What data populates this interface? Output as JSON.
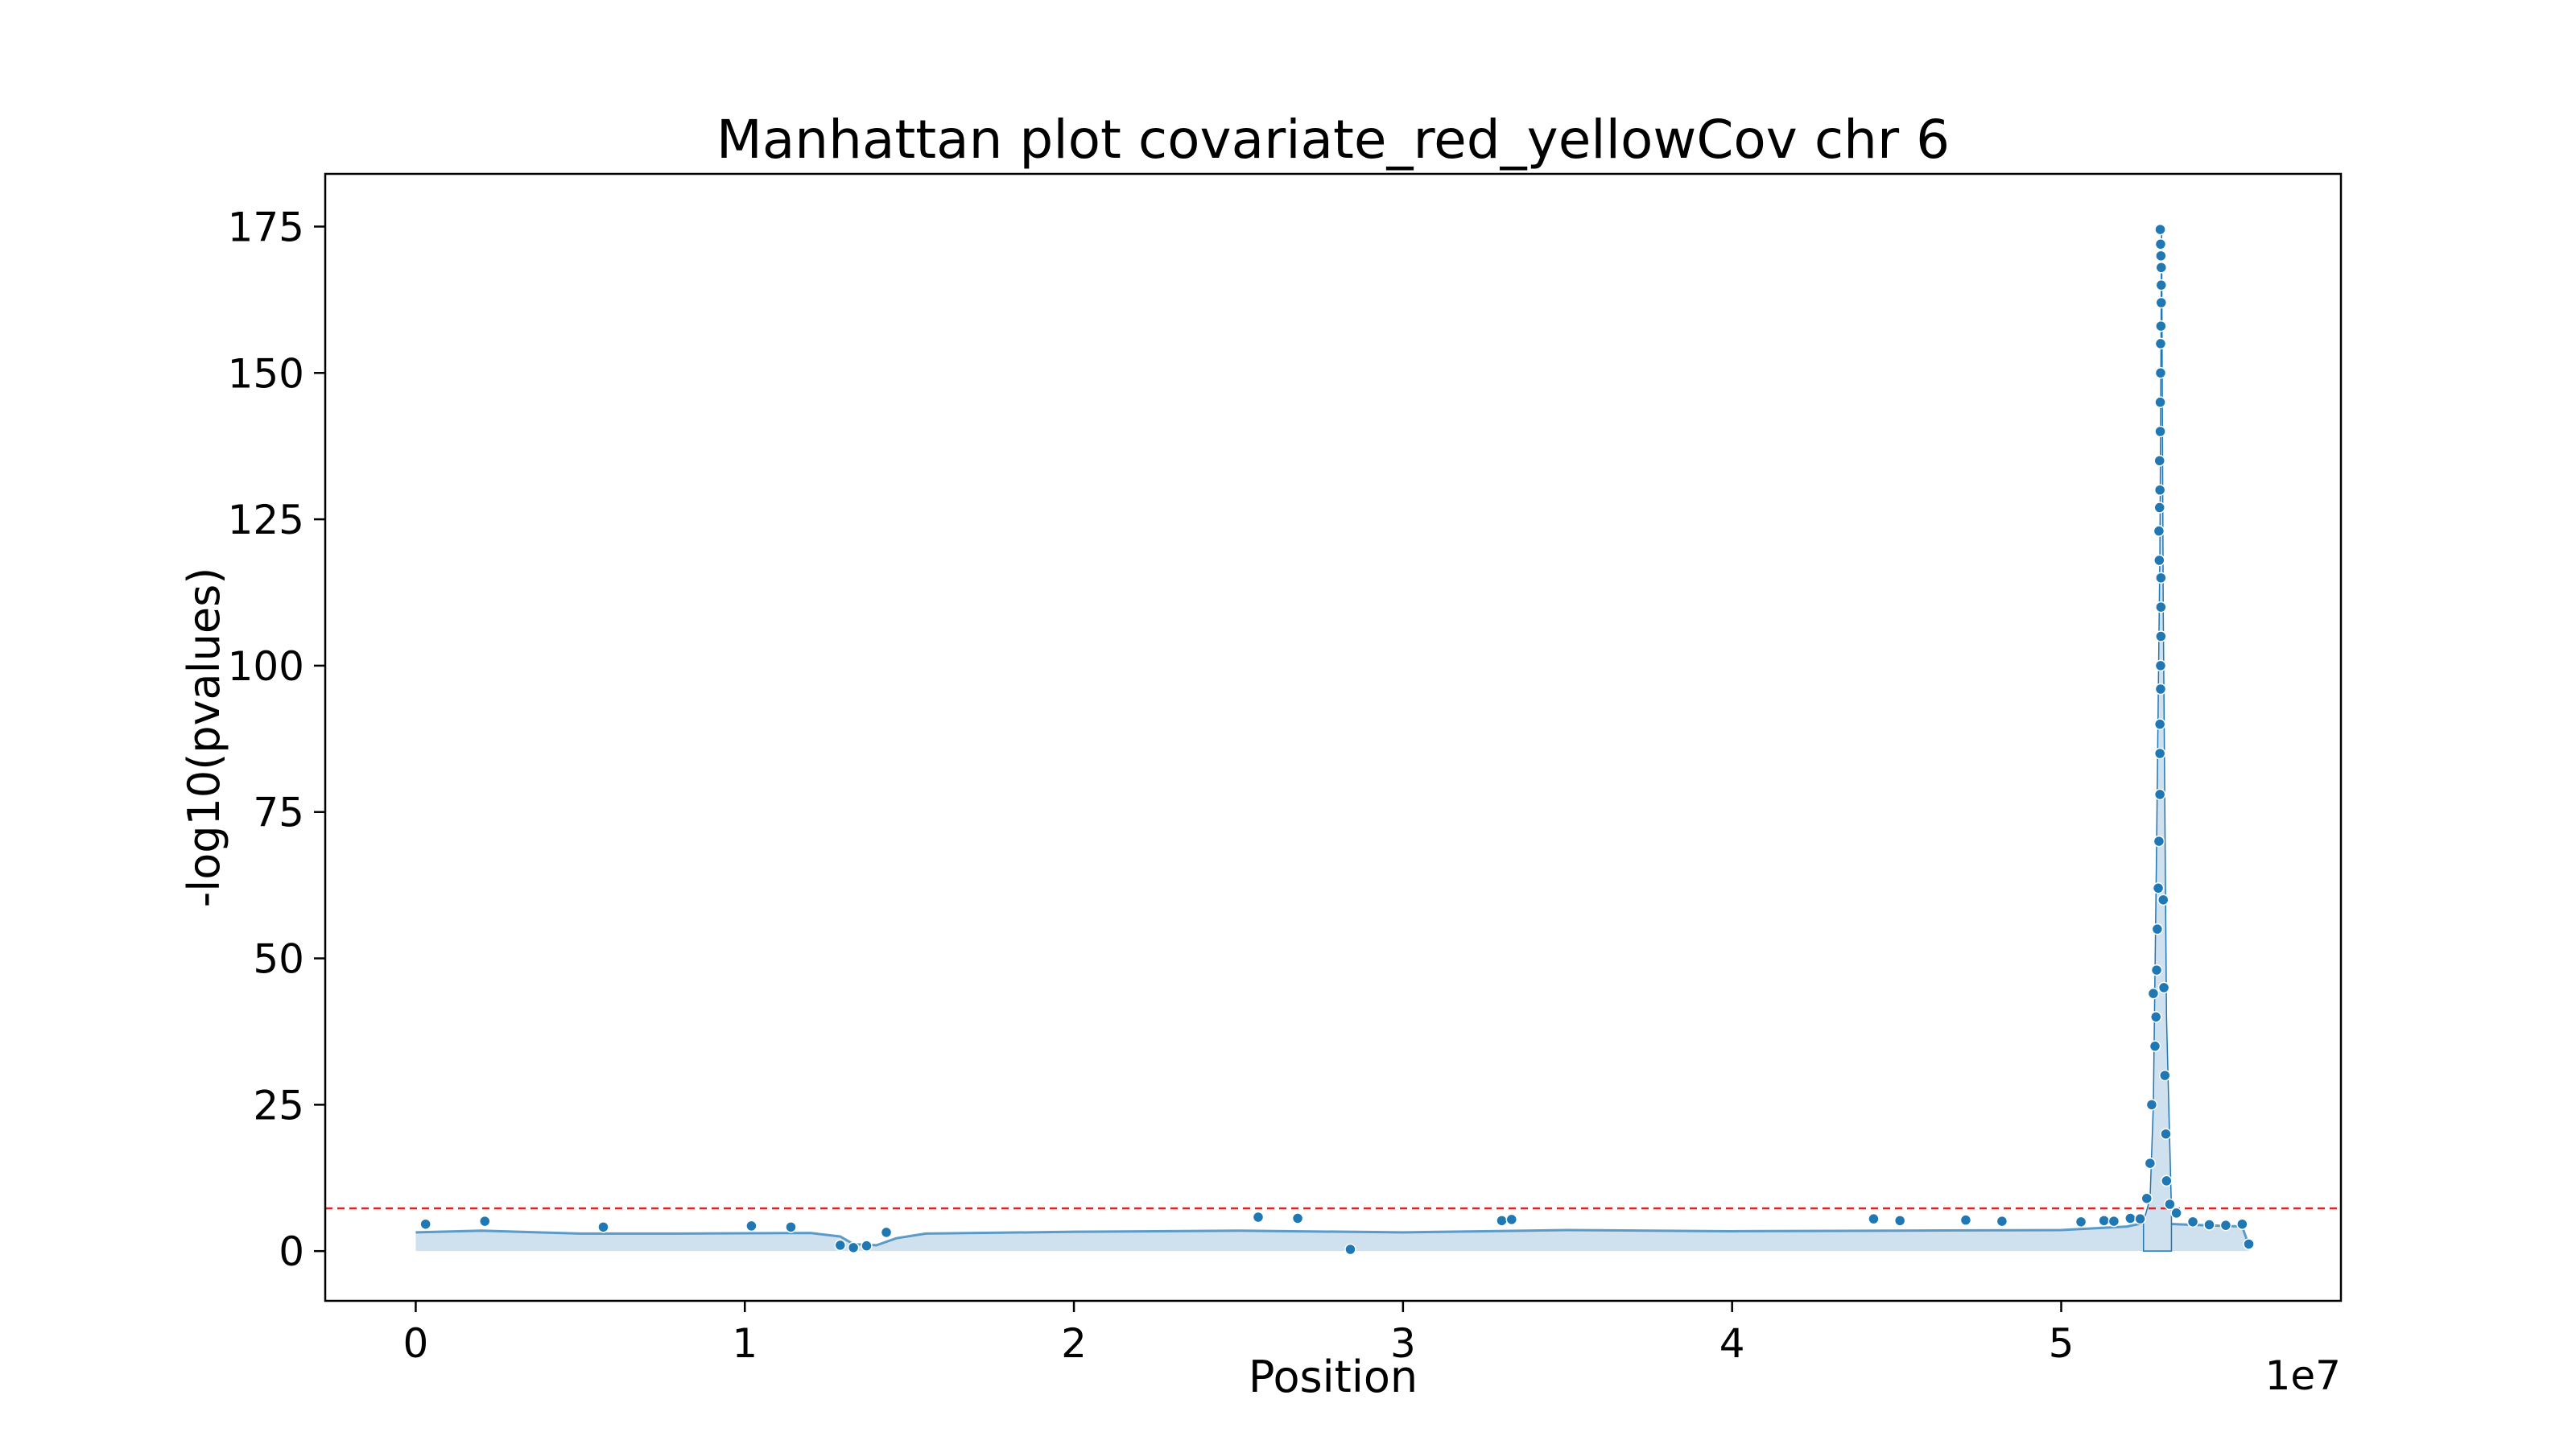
{
  "chart_data": {
    "type": "scatter",
    "title": "Manhattan plot covariate_red_yellowCov chr 6",
    "xlabel": "Position",
    "ylabel": "-log10(pvalues)",
    "x_offset_label": "1e7",
    "x_tick_labels": [
      "0",
      "1",
      "2",
      "3",
      "4",
      "5"
    ],
    "x_ticks": [
      0,
      10000000,
      20000000,
      30000000,
      40000000,
      50000000
    ],
    "y_tick_labels": [
      "0",
      "25",
      "50",
      "75",
      "100",
      "125",
      "150",
      "175"
    ],
    "y_ticks": [
      0,
      25,
      50,
      75,
      100,
      125,
      150,
      175
    ],
    "xlim": [
      -2750000,
      58500000
    ],
    "ylim": [
      -8.5,
      184
    ],
    "grid": false,
    "colors": {
      "points": "#1f77b4",
      "point_edge": "#ffffff",
      "fill": "#cfe0ef",
      "threshold": "#d62728"
    },
    "threshold": {
      "value": 7.3,
      "style": "dashed"
    },
    "background_trend": {
      "x": [
        0,
        2000000,
        5000000,
        8000000,
        12000000,
        12900000,
        13300000,
        14000000,
        14600000,
        15500000,
        20000000,
        25000000,
        30000000,
        35000000,
        40000000,
        45000000,
        50000000,
        52000000,
        52500000,
        54000000,
        55500000,
        55700000
      ],
      "y": [
        3.2,
        3.5,
        3.0,
        3.0,
        3.1,
        2.5,
        1.2,
        1.0,
        2.2,
        3.0,
        3.3,
        3.5,
        3.2,
        3.6,
        3.4,
        3.5,
        3.6,
        4.2,
        4.8,
        4.5,
        4.2,
        1.0
      ]
    },
    "peak": {
      "x": [
        52500000,
        52700000,
        52800000,
        52900000,
        53000000,
        53050000,
        53100000,
        53200000,
        53350000
      ],
      "y": [
        5,
        9,
        25,
        70,
        120,
        175,
        110,
        40,
        7
      ]
    },
    "series": [
      {
        "values": [
          [
            300000,
            4.6
          ],
          [
            2100000,
            5.1
          ],
          [
            5700000,
            4.1
          ],
          [
            10200000,
            4.3
          ],
          [
            11400000,
            4.1
          ],
          [
            12900000,
            1.0
          ],
          [
            13300000,
            0.6
          ],
          [
            13700000,
            0.9
          ],
          [
            14300000,
            3.2
          ],
          [
            25600000,
            5.8
          ],
          [
            26800000,
            5.6
          ],
          [
            28400000,
            0.3
          ],
          [
            33000000,
            5.2
          ],
          [
            33300000,
            5.4
          ],
          [
            44300000,
            5.5
          ],
          [
            45100000,
            5.2
          ],
          [
            47100000,
            5.3
          ],
          [
            48200000,
            5.1
          ],
          [
            50600000,
            5.0
          ],
          [
            51300000,
            5.2
          ],
          [
            51600000,
            5.1
          ],
          [
            52100000,
            5.6
          ],
          [
            52400000,
            5.5
          ],
          [
            52600000,
            9.0
          ],
          [
            52700000,
            15.0
          ],
          [
            52750000,
            25.0
          ],
          [
            52800000,
            44.0
          ],
          [
            52850000,
            35.0
          ],
          [
            52880000,
            40.0
          ],
          [
            52900000,
            48.0
          ],
          [
            52920000,
            55.0
          ],
          [
            52950000,
            62.0
          ],
          [
            52970000,
            70.0
          ],
          [
            53000000,
            78.0
          ],
          [
            53000000,
            85.0
          ],
          [
            53000000,
            90.0
          ],
          [
            53020000,
            96.0
          ],
          [
            53020000,
            100.0
          ],
          [
            53030000,
            105.0
          ],
          [
            53030000,
            110.0
          ],
          [
            53030000,
            115.0
          ],
          [
            52980000,
            118.0
          ],
          [
            52970000,
            123.0
          ],
          [
            52990000,
            127.0
          ],
          [
            53000000,
            130.0
          ],
          [
            52990000,
            135.0
          ],
          [
            53010000,
            140.0
          ],
          [
            53010000,
            145.0
          ],
          [
            53020000,
            150.0
          ],
          [
            53020000,
            155.0
          ],
          [
            53030000,
            158.0
          ],
          [
            53040000,
            162.0
          ],
          [
            53040000,
            165.0
          ],
          [
            53040000,
            168.0
          ],
          [
            53030000,
            170.0
          ],
          [
            53020000,
            172.0
          ],
          [
            53010000,
            174.5
          ],
          [
            53100000,
            60.0
          ],
          [
            53120000,
            45.0
          ],
          [
            53150000,
            30.0
          ],
          [
            53180000,
            20.0
          ],
          [
            53200000,
            12.0
          ],
          [
            53300000,
            8.0
          ],
          [
            53500000,
            6.5
          ],
          [
            54000000,
            5.0
          ],
          [
            54500000,
            4.5
          ],
          [
            55000000,
            4.4
          ],
          [
            55500000,
            4.6
          ],
          [
            55700000,
            1.2
          ]
        ]
      }
    ]
  }
}
